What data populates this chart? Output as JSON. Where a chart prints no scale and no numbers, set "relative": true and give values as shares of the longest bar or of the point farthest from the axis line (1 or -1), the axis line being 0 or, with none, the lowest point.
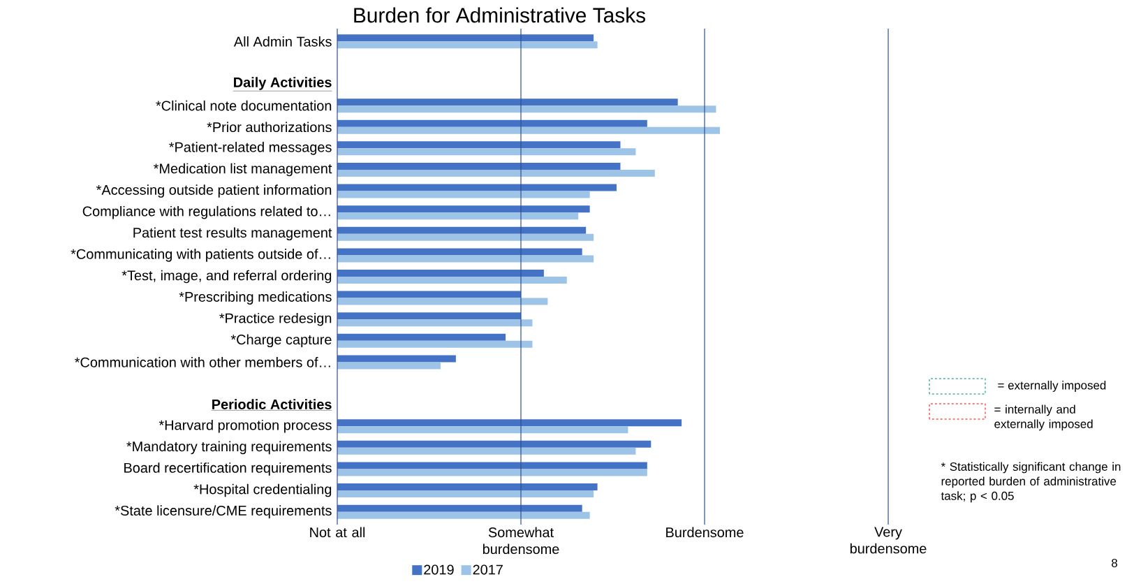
{
  "chart_data": {
    "type": "bar",
    "orientation": "horizontal",
    "relative": true,
    "title": "Burden for Administrative Tasks",
    "categories": [
      "All Admin Tasks",
      null,
      "Daily Activities",
      "*Clinical note documentation",
      "*Prior authorizations",
      "*Patient-related messages",
      "*Medication list management",
      "*Accessing outside patient information",
      "Compliance with regulations related to…",
      "Patient test results management",
      "*Communicating with patients outside of…",
      "*Test, image, and referral ordering",
      "*Prescribing medications",
      "*Practice redesign",
      "*Charge capture",
      "*Communication with other members of…",
      null,
      "Periodic Activities",
      "*Harvard promotion process",
      "*Mandatory training requirements",
      "Board recertification requirements",
      "*Hospital credentialing",
      "*State licensure/CME requirements"
    ],
    "series": [
      {
        "name": "2019",
        "color": "#4472c4",
        "values": [
          0.67,
          null,
          null,
          0.89,
          0.81,
          0.74,
          0.74,
          0.73,
          0.66,
          0.65,
          0.64,
          0.54,
          0.48,
          0.48,
          0.44,
          0.31,
          null,
          null,
          0.9,
          0.82,
          0.81,
          0.68,
          0.64
        ]
      },
      {
        "name": "2017",
        "color": "#9dc3e6",
        "values": [
          0.68,
          null,
          null,
          0.99,
          1,
          0.78,
          0.83,
          0.66,
          0.63,
          0.67,
          0.67,
          0.6,
          0.55,
          0.51,
          0.51,
          0.27,
          null,
          null,
          0.76,
          0.78,
          0.81,
          0.67,
          0.66
        ]
      }
    ],
    "ref_lines": [
      {
        "axis": "x",
        "value": 0,
        "label": "Not at all",
        "color": "#2f4f8f"
      },
      {
        "axis": "x",
        "value": 0.48,
        "label": "Somewhat burdensome",
        "color": "#2f4f8f"
      },
      {
        "axis": "x",
        "value": 0.96,
        "label": "Burdensome",
        "color": "#2f4f8f"
      },
      {
        "axis": "x",
        "value": 1.44,
        "label": "Very burdensome",
        "color": "#2f4f8f"
      }
    ],
    "legend": "bottom",
    "annotations": [
      "= externally imposed",
      "= internally and externally imposed",
      "* Statistically significant change in reported burden of administrative task; p < 0.05",
      "8"
    ]
  }
}
